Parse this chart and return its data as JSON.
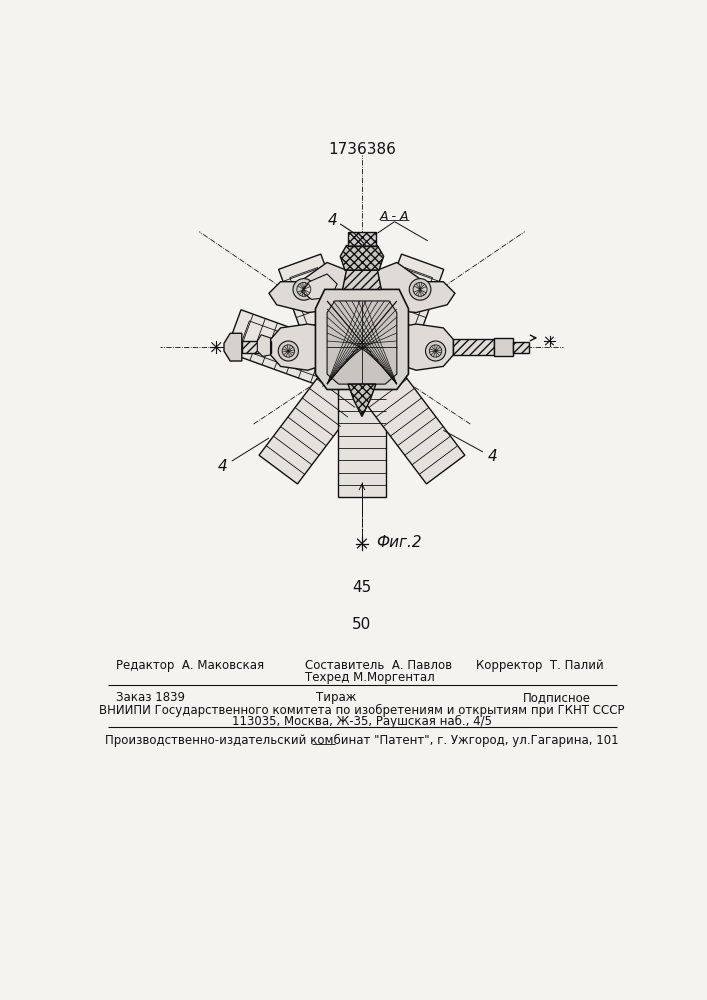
{
  "patent_number": "1736386",
  "page_numbers": [
    "45",
    "50"
  ],
  "fig_label": "Фиг.2",
  "section_label": "A - A",
  "part_label_4": "4",
  "bg_color": "#f5f3f0",
  "lc": "#111111",
  "footer": {
    "editor": "Редактор  А. Маковская",
    "composer_line1": "Составитель  А. Павлов",
    "composer_line2": "Техред М.Моргентал",
    "corrector": "Корректор  Т. Палий",
    "order": "Заказ 1839",
    "tirazh": "Тираж",
    "podpisnoe": "Подписное",
    "vniip1": "ВНИИПИ Государственного комитета по изобретениям и открытиям при ГКНТ СССР",
    "vniip2": "113035, Москва, Ж-35, Раушская наб., 4/5",
    "publisher": "Производственно-издательский комбинат \"Патент\", г. Ужгород, ул.Гагарина, 101"
  }
}
